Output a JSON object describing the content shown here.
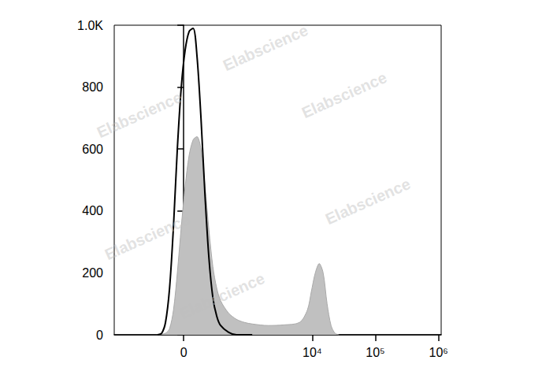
{
  "chart_data": {
    "type": "line",
    "watermark": "Elabscience",
    "xlim": [
      -1150,
      1100000
    ],
    "xticks": [
      0,
      {
        "value": 10000,
        "label": "10⁴"
      },
      {
        "value": 100000,
        "label": "10⁵"
      },
      {
        "value": 1000000,
        "label": "10⁶"
      }
    ],
    "ylim": [
      0,
      1000
    ],
    "yticks": [
      0,
      200,
      400,
      600,
      800,
      {
        "value": 1000,
        "label": "1.0K"
      }
    ],
    "grid": false,
    "series": [
      {
        "type": "area",
        "color": "#c0c0c0",
        "x": [
          -202,
          -131,
          -99,
          -70,
          -43,
          -16,
          10,
          37,
          65,
          93,
          124,
          158,
          194,
          235,
          280,
          330,
          456,
          617,
          832,
          1113,
          1987,
          3533,
          6293,
          8372,
          9678,
          11169,
          12898,
          14886,
          17186,
          19854,
          22908,
          26459
        ],
        "values": [
          0,
          5,
          20,
          80,
          200,
          350,
          480,
          580,
          630,
          640,
          600,
          480,
          340,
          220,
          150,
          110,
          70,
          50,
          40,
          35,
          30,
          32,
          40,
          80,
          140,
          200,
          230,
          200,
          100,
          30,
          5,
          0
        ]
      },
      {
        "type": "line",
        "color": "#000000",
        "x": [
          -202,
          -164,
          -131,
          -99,
          -70,
          -43,
          -16,
          10,
          37,
          65,
          93,
          124,
          158,
          194,
          235,
          280,
          330,
          456,
          617,
          1113
        ],
        "values": [
          0,
          5,
          40,
          150,
          350,
          600,
          800,
          920,
          980,
          990,
          900,
          700,
          450,
          250,
          120,
          60,
          30,
          8,
          0,
          0
        ]
      }
    ]
  }
}
